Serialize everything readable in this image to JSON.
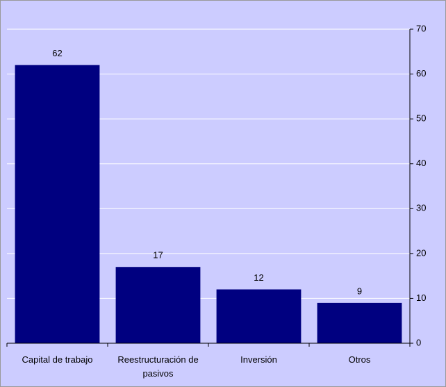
{
  "chart_data": {
    "type": "bar",
    "categories": [
      "Capital de trabajo",
      "Reestructuración de pasivos",
      "Inversión",
      "Otros"
    ],
    "values": [
      62,
      17,
      12,
      9
    ],
    "color": "#000080",
    "ylim": [
      0,
      70
    ],
    "yticks": [
      0,
      10,
      20,
      30,
      40,
      50,
      60,
      70
    ],
    "grid": true,
    "y_axis_side": "right",
    "data_labels": true
  }
}
